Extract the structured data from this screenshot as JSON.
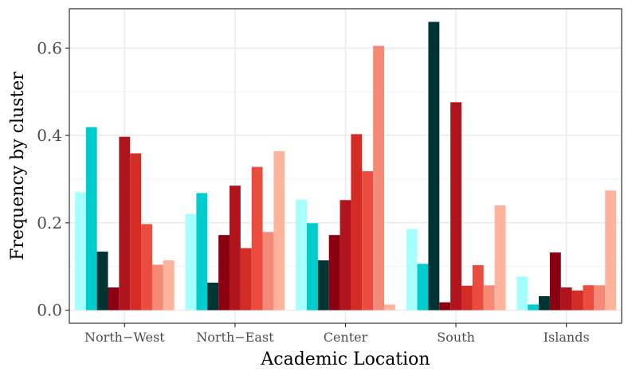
{
  "chart_data": {
    "type": "bar",
    "xlabel": "Academic Location",
    "ylabel": "Frequency by cluster",
    "ylim": [
      -0.03,
      0.69
    ],
    "yticks": [
      0.0,
      0.2,
      0.4,
      0.6
    ],
    "ytick_labels": [
      "0.0",
      "0.2",
      "0.4",
      "0.6"
    ],
    "grid": true,
    "legend": "none",
    "categories": [
      "North−West",
      "North−East",
      "Center",
      "South",
      "Islands"
    ],
    "series": [
      {
        "color": "#a6ffff",
        "values": [
          0.27,
          0.22,
          0.253,
          0.186,
          0.077
        ]
      },
      {
        "color": "#00cccc",
        "values": [
          0.419,
          0.268,
          0.199,
          0.106,
          0.013
        ]
      },
      {
        "color": "#003333",
        "values": [
          0.134,
          0.063,
          0.114,
          0.66,
          0.032
        ]
      },
      {
        "color": "#8b0010",
        "values": [
          0.052,
          0.172,
          0.172,
          0.018,
          0.132
        ]
      },
      {
        "color": "#b0151d",
        "values": [
          0.397,
          0.285,
          0.252,
          0.476,
          0.052
        ]
      },
      {
        "color": "#d42b25",
        "values": [
          0.359,
          0.142,
          0.403,
          0.056,
          0.045
        ]
      },
      {
        "color": "#ea4d3e",
        "values": [
          0.197,
          0.328,
          0.318,
          0.103,
          0.057
        ]
      },
      {
        "color": "#f48a75",
        "values": [
          0.104,
          0.179,
          0.605,
          0.057,
          0.057
        ]
      },
      {
        "color": "#ffb39c",
        "values": [
          0.114,
          0.364,
          0.013,
          0.24,
          0.274
        ]
      }
    ]
  }
}
